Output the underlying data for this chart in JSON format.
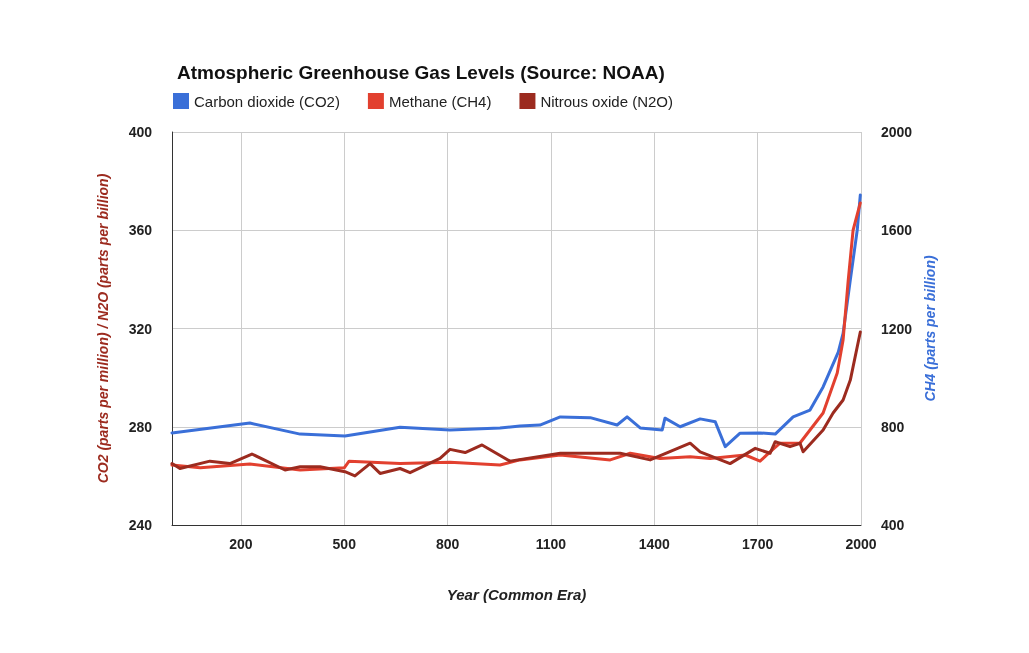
{
  "chart_data": {
    "type": "line",
    "title": "Atmospheric Greenhouse Gas Levels (Source: NOAA)",
    "xlabel": "Year (Common Era)",
    "ylabel": "CO2 (parts per million) / N2O (parts per billion)",
    "y2label": "CH4 (parts per billion)",
    "xlim": [
      0,
      2000
    ],
    "xticks": [
      200,
      500,
      800,
      1100,
      1400,
      1700,
      2000
    ],
    "ylim": [
      240,
      400
    ],
    "yticks": [
      240,
      280,
      320,
      360,
      400
    ],
    "y2lim": [
      400,
      2000
    ],
    "y2ticks": [
      400,
      800,
      1200,
      1600,
      2000
    ],
    "grid": true,
    "legend": "top left",
    "marker": "none",
    "line_style": "solid",
    "series": [
      {
        "name": "Carbon dioxide (CO2)",
        "color": "#3a6fd8",
        "x": [
          0,
          226,
          372,
          502,
          662,
          807,
          952,
          1010,
          1068,
          1127,
          1214,
          1292,
          1321,
          1359,
          1423,
          1431,
          1475,
          1533,
          1577,
          1606,
          1649,
          1707,
          1751,
          1803,
          1852,
          1890,
          1934,
          1948,
          1969,
          1989,
          1998
        ],
        "values": [
          277.5,
          281.5,
          277,
          276.2,
          279.8,
          278.7,
          279.5,
          280.3,
          280.7,
          284,
          283.7,
          280.7,
          284,
          279.5,
          278.7,
          283.5,
          280,
          283.2,
          282,
          271.9,
          277.4,
          277.5,
          277,
          284,
          286.8,
          296.2,
          310.4,
          318,
          339.8,
          360,
          374.4
        ]
      },
      {
        "name": "Methane (CH4)",
        "color": "#e2402f",
        "axis": "y2",
        "x": [
          0,
          82,
          226,
          372,
          500,
          514,
          662,
          807,
          952,
          1010,
          1127,
          1272,
          1330,
          1417,
          1504,
          1562,
          1664,
          1707,
          1736,
          1765,
          1823,
          1890,
          1931,
          1948,
          1963,
          1977,
          1998
        ],
        "values": [
          644,
          633,
          648,
          624,
          633,
          660,
          650,
          655,
          644,
          665,
          685,
          665,
          692,
          671,
          678,
          671,
          685,
          660,
          698,
          733,
          734,
          856,
          1019,
          1153,
          1398,
          1600,
          1711
        ]
      },
      {
        "name": "Nitrous oxide (N2O)",
        "color": "#9c2b1f",
        "x": [
          0,
          23,
          110,
          168,
          232,
          328,
          372,
          430,
          502,
          531,
          575,
          604,
          662,
          691,
          778,
          807,
          851,
          900,
          981,
          1127,
          1301,
          1388,
          1504,
          1533,
          1620,
          1693,
          1736,
          1751,
          1794,
          1823,
          1832,
          1890,
          1919,
          1948,
          1969,
          1998
        ],
        "values": [
          265,
          263,
          266,
          265,
          268.9,
          262.4,
          263.7,
          263.7,
          261.7,
          260,
          265,
          261,
          263,
          261.3,
          267.1,
          270.8,
          269.5,
          272.6,
          266,
          269.2,
          269.2,
          266.5,
          273.3,
          269.8,
          265,
          271.2,
          269.2,
          273.9,
          271.9,
          273.3,
          269.8,
          278.7,
          285.6,
          290.9,
          299,
          318.6
        ]
      }
    ]
  }
}
